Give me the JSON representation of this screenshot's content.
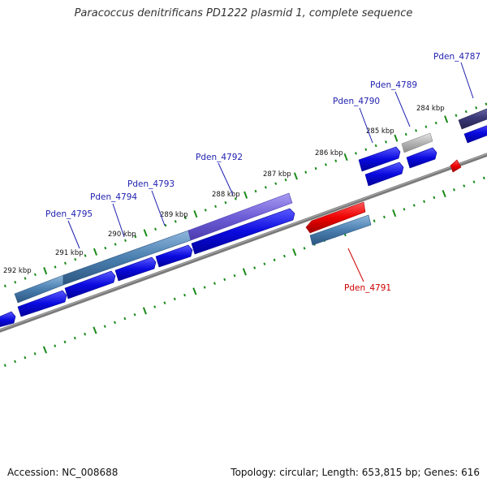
{
  "title": "Paracoccus denitrificans PD1222 plasmid 1, complete sequence",
  "accession": "Accession: NC_008688",
  "summary": "Topology: circular; Length: 653,815 bp; Genes: 616",
  "scale_ticks": [
    "284 kbp",
    "285 kbp",
    "286 kbp",
    "287 kbp",
    "288 kbp",
    "289 kbp",
    "290 kbp",
    "291 kbp",
    "292 kbp"
  ],
  "gene_labels": {
    "pden_4787": "Pden_4787",
    "pden_4789": "Pden_4789",
    "pden_4790": "Pden_4790",
    "pden_4791": "Pden_4791",
    "pden_4792": "Pden_4792",
    "pden_4793": "Pden_4793",
    "pden_4794": "Pden_4794",
    "pden_4795": "Pden_4795"
  },
  "colors": {
    "forward_cds": "#0a0adf",
    "reverse_cds": "#ee0000",
    "gene_steel": "#4a7fb0",
    "gene_violet": "#6e5ed8",
    "gene_gray": "#b4b4b4",
    "gene_dark": "#3d3a7a",
    "backbone": "#7a7a7a",
    "tick": "#1a8a1a",
    "label_forward": "#1f1fb0",
    "label_reverse": "#cc0000"
  }
}
